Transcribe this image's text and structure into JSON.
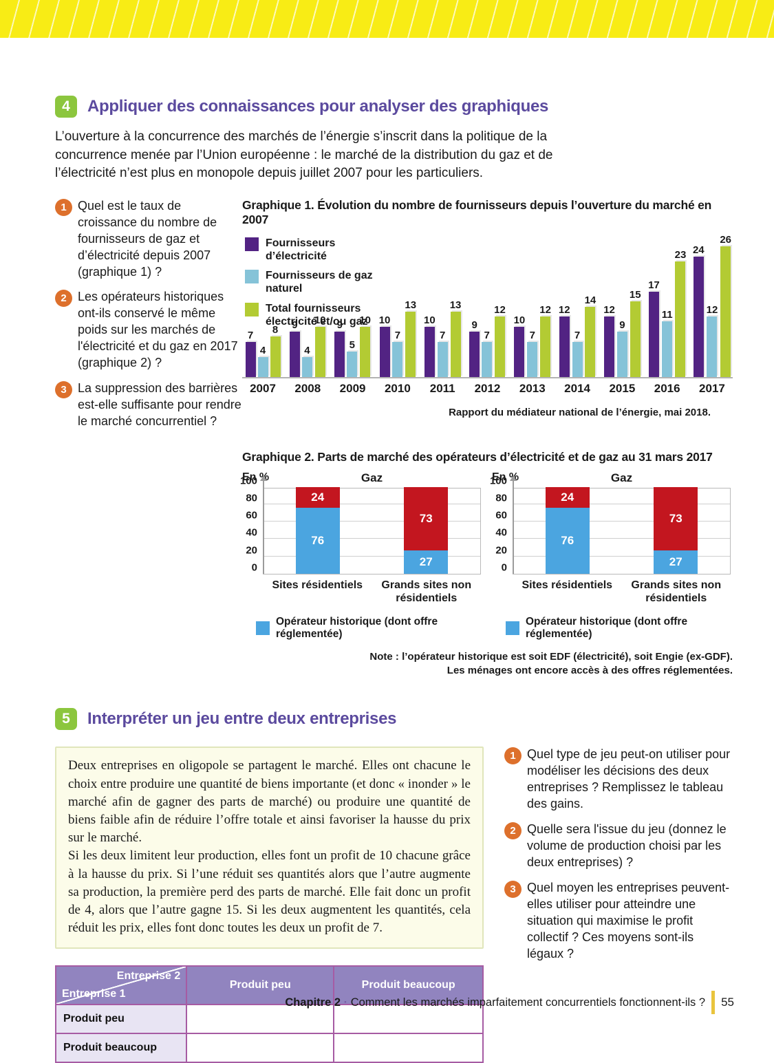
{
  "section4": {
    "badge": "4",
    "title": "Appliquer des connaissances pour analyser des graphiques",
    "intro": "L’ouverture à la concurrence des marchés de l’énergie s’inscrit dans la politique de la concurrence menée par l’Union européenne : le marché de la distribution du gaz et de l’électricité n’est plus en monopole depuis juillet 2007 pour les particuliers.",
    "questions": [
      {
        "num": "1",
        "text": "Quel est le taux de croissance du nombre de fournisseurs de gaz et d’électricité depuis 2007 (graphique 1) ?"
      },
      {
        "num": "2",
        "text": "Les opérateurs historiques ont-ils conservé le même poids sur les marchés de l'électricité et du gaz en 2017 (graphique 2) ?"
      },
      {
        "num": "3",
        "text": "La suppression des barrières est-elle suffisante pour rendre le marché concurrentiel ?"
      }
    ]
  },
  "graphique1": {
    "title": "Graphique 1. Évolution du nombre de fournisseurs depuis l’ouverture du marché en 2007",
    "source": "Rapport du médiateur national de l’énergie, mai 2018."
  },
  "graphique2": {
    "title": "Graphique 2. Parts de marché des opérateurs d’électricité et de gaz au 31 mars 2017",
    "note_line1": "Note : l’opérateur historique est soit EDF (électricité), soit Engie (ex-GDF).",
    "note_line2": "Les ménages ont encore accès à des offres réglementées."
  },
  "section5": {
    "badge": "5",
    "title": "Interpréter un jeu entre deux entreprises",
    "box_p1": "Deux entreprises en oligopole se partagent le marché. Elles ont chacune le choix entre produire une quantité de biens importante (et donc « inonder » le marché afin de gagner des parts de marché) ou produire une quantité de biens faible afin de réduire l’offre totale et ainsi favoriser la hausse du prix sur le marché.",
    "box_p2": "Si les deux limitent leur production, elles font un profit de 10 chacune grâce à la hausse du prix. Si l’une réduit ses quantités alors que l’autre augmente sa production, la première perd des parts de marché. Elle fait donc un profit de 4, alors que l’autre gagne 15. Si les deux augmentent les quantités, cela réduit les prix, elles font donc toutes les deux un profit de 7.",
    "questions": [
      {
        "num": "1",
        "text": "Quel type de jeu peut-on utiliser pour modéliser les décisions des deux entreprises ? Remplissez le tableau des gains."
      },
      {
        "num": "2",
        "text": "Quelle sera l'issue du jeu (donnez le volume de production choisi par les deux entreprises) ?"
      },
      {
        "num": "3",
        "text": "Quel moyen les entreprises peuvent-elles utiliser pour atteindre une situation qui maximise le profit collectif ? Ces moyens sont-ils légaux ?"
      }
    ]
  },
  "table": {
    "corner_top_right": "Entreprise 2",
    "corner_bottom_left": "Entreprise 1",
    "col_headers": [
      "Produit peu",
      "Produit beaucoup"
    ],
    "rows": [
      {
        "label": "Produit peu",
        "cells": [
          "",
          ""
        ]
      },
      {
        "label": "Produit beaucoup",
        "cells": [
          "",
          ""
        ]
      }
    ]
  },
  "footer": {
    "chapter": "Chapitre 2",
    "separator": "·",
    "chapter_text": "Comment les marchés imparfaitement concurrentiels fonctionnent-ils ?",
    "page_number": "55"
  },
  "colors": {
    "banner_yellow": "#f8ec15",
    "section_badge_green": "#8cc63e",
    "section_title_purple": "#5b4a9e",
    "question_circle_orange": "#dd702c",
    "table_header_purple": "#9184bf",
    "table_row_lavender": "#e8e4f3",
    "table_border_magenta": "#a65ba3",
    "footer_bar_yellow": "#e9c43d"
  },
  "chart_data": [
    {
      "type": "bar",
      "title": "Graphique 1. Évolution du nombre de fournisseurs depuis l’ouverture du marché en 2007",
      "categories": [
        "2007",
        "2008",
        "2009",
        "2010",
        "2011",
        "2012",
        "2013",
        "2014",
        "2015",
        "2016",
        "2017"
      ],
      "series": [
        {
          "name": "Fournisseurs d’électricité",
          "color": "#522383",
          "values": [
            7,
            9,
            9,
            10,
            10,
            9,
            10,
            12,
            12,
            17,
            24
          ]
        },
        {
          "name": "Fournisseurs de gaz naturel",
          "color": "#85c3d8",
          "values": [
            4,
            4,
            5,
            7,
            7,
            7,
            7,
            7,
            9,
            11,
            12
          ]
        },
        {
          "name": "Total fournisseurs électricité et/ou gaz",
          "color": "#b3cb33",
          "values": [
            8,
            10,
            10,
            13,
            13,
            12,
            12,
            14,
            15,
            23,
            26
          ]
        }
      ],
      "ylim": [
        0,
        26
      ],
      "grid": false,
      "legend_position": "top-left",
      "source": "Rapport du médiateur national de l’énergie, mai 2018."
    },
    {
      "type": "bar",
      "subtype": "stacked",
      "title": "Gaz",
      "axis_label": "En %",
      "categories": [
        "Sites résidentiels",
        "Grands sites non résidentiels"
      ],
      "series": [
        {
          "name": "Opérateur historique (dont offre réglementée)",
          "color": "#4ba5e0",
          "values": [
            76,
            27
          ]
        },
        {
          "name": "",
          "color": "#c3161f",
          "values": [
            24,
            73
          ]
        }
      ],
      "yticks": [
        0,
        20,
        40,
        60,
        80,
        100
      ],
      "ylim": [
        0,
        100
      ],
      "grid": true,
      "legend_position": "bottom"
    },
    {
      "type": "bar",
      "subtype": "stacked",
      "title": "Gaz",
      "axis_label": "En %",
      "categories": [
        "Sites résidentiels",
        "Grands sites non résidentiels"
      ],
      "series": [
        {
          "name": "Opérateur historique (dont offre réglementée)",
          "color": "#4ba5e0",
          "values": [
            76,
            27
          ]
        },
        {
          "name": "",
          "color": "#c3161f",
          "values": [
            24,
            73
          ]
        }
      ],
      "yticks": [
        0,
        20,
        40,
        60,
        80,
        100
      ],
      "ylim": [
        0,
        100
      ],
      "grid": true,
      "legend_position": "bottom"
    }
  ]
}
